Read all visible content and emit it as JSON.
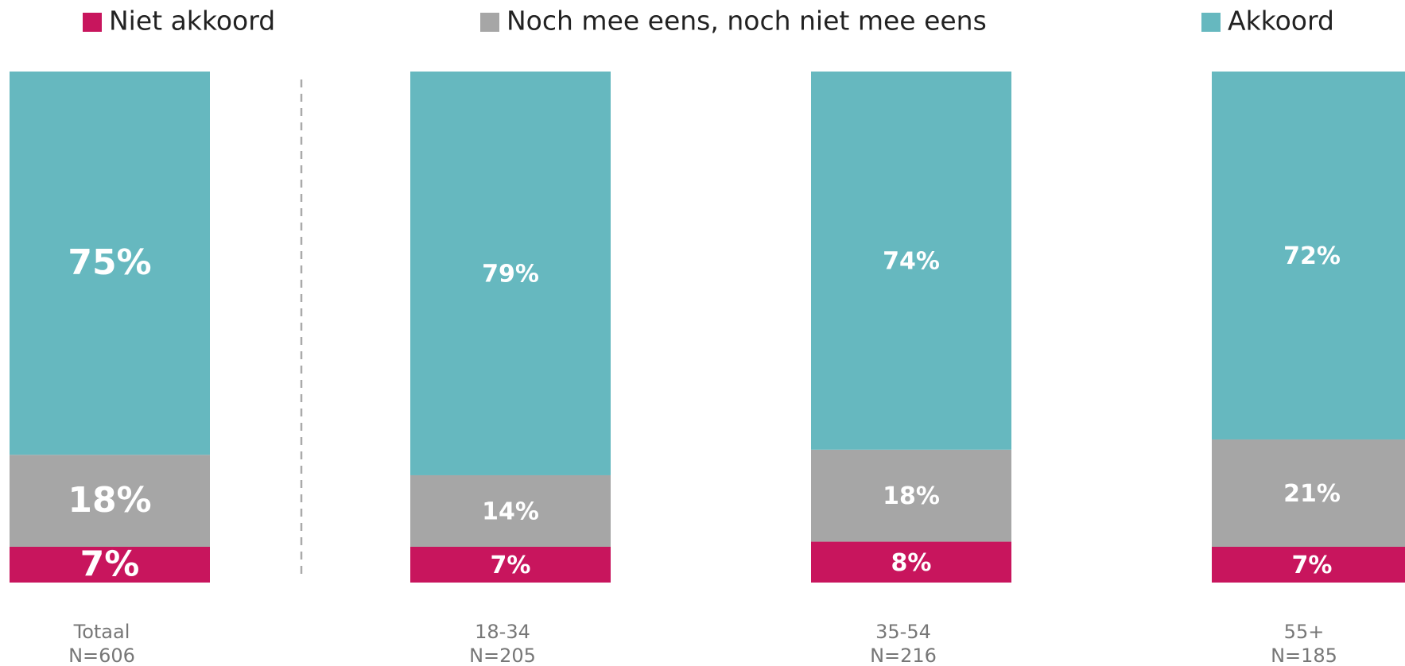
{
  "chart_data": {
    "type": "stacked_bar",
    "categories": [
      "Totaal",
      "18-34",
      "35-54",
      "55+"
    ],
    "sample_sizes": [
      "N=606",
      "N=205",
      "N=216",
      "N=185"
    ],
    "series": [
      {
        "name": "Niet akkoord",
        "color": "#c8155d",
        "values": [
          7,
          7,
          8,
          7
        ],
        "value_labels": [
          "7%",
          "7%",
          "8%",
          "7%"
        ]
      },
      {
        "name": "Noch mee eens, noch niet mee eens",
        "color": "#a6a6a6",
        "values": [
          18,
          14,
          18,
          21
        ],
        "value_labels": [
          "18%",
          "14%",
          "18%",
          "21%"
        ]
      },
      {
        "name": "Akkoord",
        "color": "#66b8bf",
        "values": [
          75,
          79,
          74,
          72
        ],
        "value_labels": [
          "75%",
          "79%",
          "74%",
          "72%"
        ]
      }
    ]
  }
}
